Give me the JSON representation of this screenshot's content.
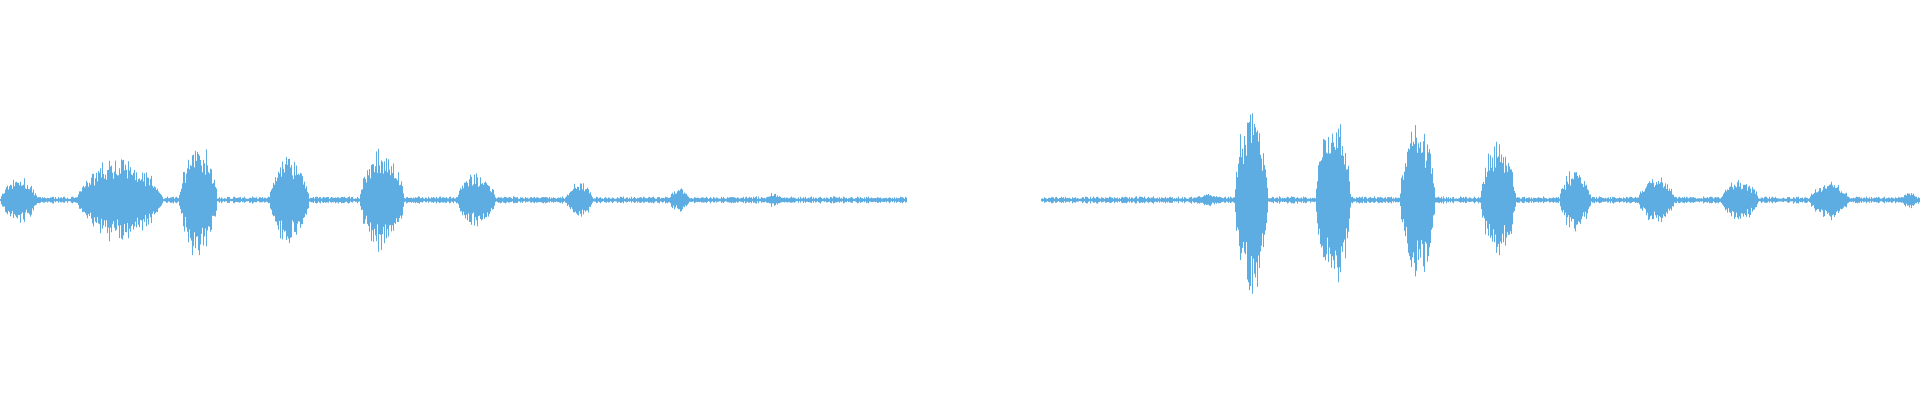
{
  "waveform": {
    "color": "#5DADE2",
    "background": "#FFFFFF",
    "baseline_noise": 0.03,
    "silent_ranges": [
      [
        0.472,
        0.542
      ]
    ],
    "bursts": [
      {
        "start": 0.0,
        "end": 0.022,
        "peak": 0.24
      },
      {
        "start": 0.04,
        "end": 0.091,
        "peak": 0.42
      },
      {
        "start": 0.093,
        "end": 0.116,
        "peak": 0.58
      },
      {
        "start": 0.14,
        "end": 0.164,
        "peak": 0.46
      },
      {
        "start": 0.187,
        "end": 0.214,
        "peak": 0.52
      },
      {
        "start": 0.238,
        "end": 0.261,
        "peak": 0.28
      },
      {
        "start": 0.294,
        "end": 0.311,
        "peak": 0.18
      },
      {
        "start": 0.348,
        "end": 0.361,
        "peak": 0.12
      },
      {
        "start": 0.398,
        "end": 0.409,
        "peak": 0.07
      },
      {
        "start": 0.62,
        "end": 0.641,
        "peak": 0.06
      },
      {
        "start": 0.643,
        "end": 0.663,
        "peak": 0.98
      },
      {
        "start": 0.685,
        "end": 0.706,
        "peak": 0.92
      },
      {
        "start": 0.729,
        "end": 0.75,
        "peak": 0.82
      },
      {
        "start": 0.771,
        "end": 0.792,
        "peak": 0.62
      },
      {
        "start": 0.812,
        "end": 0.831,
        "peak": 0.32
      },
      {
        "start": 0.853,
        "end": 0.875,
        "peak": 0.24
      },
      {
        "start": 0.896,
        "end": 0.919,
        "peak": 0.22
      },
      {
        "start": 0.942,
        "end": 0.966,
        "peak": 0.2
      },
      {
        "start": 0.99,
        "end": 1.0,
        "peak": 0.09
      }
    ]
  }
}
